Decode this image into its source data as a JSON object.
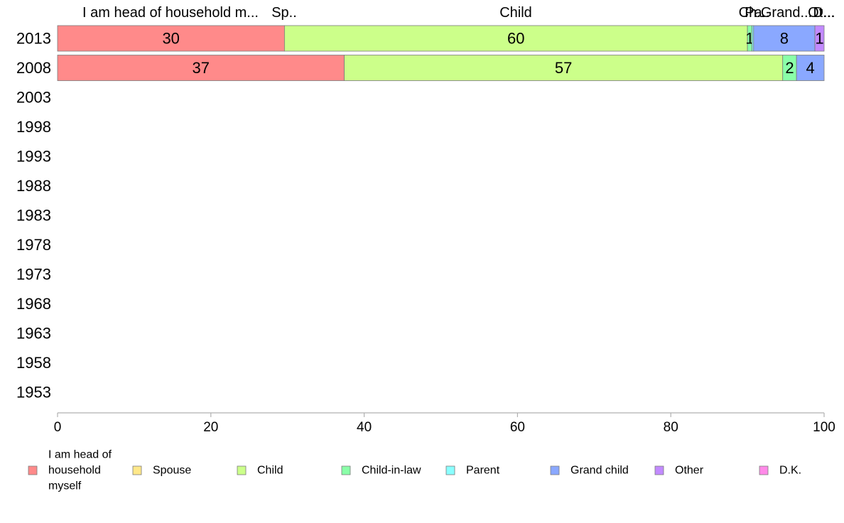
{
  "chart_data": {
    "type": "bar",
    "orientation": "horizontal",
    "stacked": true,
    "xlim": [
      0,
      100
    ],
    "x_ticks": [
      "0",
      "20",
      "40",
      "60",
      "80",
      "100"
    ],
    "categories": [
      "2013",
      "2008",
      "2003",
      "1998",
      "1993",
      "1988",
      "1983",
      "1978",
      "1973",
      "1968",
      "1963",
      "1958",
      "1953"
    ],
    "top_labels": [
      "I am head of household m...",
      "Sp..",
      "Child",
      "Ch..",
      "Pa..",
      "Grand...",
      "Ot...",
      "D..."
    ],
    "series": [
      {
        "name": "I am head of household myself",
        "color": "#ff8a8a",
        "values": [
          29.6,
          37.4,
          null,
          null,
          null,
          null,
          null,
          null,
          null,
          null,
          null,
          null,
          null
        ],
        "labels": [
          "30",
          "37",
          "",
          "",
          "",
          "",
          "",
          "",
          "",
          "",
          "",
          "",
          ""
        ]
      },
      {
        "name": "Spouse",
        "color": "#ffe88a",
        "values": [
          0,
          0,
          null,
          null,
          null,
          null,
          null,
          null,
          null,
          null,
          null,
          null,
          null
        ],
        "labels": [
          "",
          "",
          "",
          "",
          "",
          "",
          "",
          "",
          "",
          "",
          "",
          "",
          ""
        ]
      },
      {
        "name": "Child",
        "color": "#ccff8a",
        "values": [
          60.4,
          57.2,
          null,
          null,
          null,
          null,
          null,
          null,
          null,
          null,
          null,
          null,
          null
        ],
        "labels": [
          "60",
          "57",
          "",
          "",
          "",
          "",
          "",
          "",
          "",
          "",
          "",
          "",
          ""
        ]
      },
      {
        "name": "Child-in-law",
        "color": "#8affa8",
        "values": [
          0.6,
          1.8,
          null,
          null,
          null,
          null,
          null,
          null,
          null,
          null,
          null,
          null,
          null
        ],
        "labels": [
          "1",
          "2",
          "",
          "",
          "",
          "",
          "",
          "",
          "",
          "",
          "",
          "",
          ""
        ]
      },
      {
        "name": "Parent",
        "color": "#8affff",
        "values": [
          0.2,
          0,
          null,
          null,
          null,
          null,
          null,
          null,
          null,
          null,
          null,
          null,
          null
        ],
        "labels": [
          "",
          "",
          "",
          "",
          "",
          "",
          "",
          "",
          "",
          "",
          "",
          "",
          ""
        ]
      },
      {
        "name": "Grand child",
        "color": "#8aa8ff",
        "values": [
          8.0,
          3.6,
          null,
          null,
          null,
          null,
          null,
          null,
          null,
          null,
          null,
          null,
          null
        ],
        "labels": [
          "8",
          "4",
          "",
          "",
          "",
          "",
          "",
          "",
          "",
          "",
          "",
          "",
          ""
        ]
      },
      {
        "name": "Other",
        "color": "#c28aff",
        "values": [
          1.2,
          0,
          null,
          null,
          null,
          null,
          null,
          null,
          null,
          null,
          null,
          null,
          null
        ],
        "labels": [
          "1",
          "",
          "",
          "",
          "",
          "",
          "",
          "",
          "",
          "",
          "",
          "",
          ""
        ]
      },
      {
        "name": "D.K.",
        "color": "#ff8ae8",
        "values": [
          0,
          0,
          null,
          null,
          null,
          null,
          null,
          null,
          null,
          null,
          null,
          null,
          null
        ],
        "labels": [
          "",
          "",
          "",
          "",
          "",
          "",
          "",
          "",
          "",
          "",
          "",
          "",
          ""
        ]
      }
    ],
    "legend": {
      "placement": "bottom",
      "entries": [
        {
          "lines": [
            "I am head of",
            "household",
            "myself"
          ],
          "color": "#ff8a8a"
        },
        {
          "lines": [
            "Spouse"
          ],
          "color": "#ffe88a"
        },
        {
          "lines": [
            "Child"
          ],
          "color": "#ccff8a"
        },
        {
          "lines": [
            "Child-in-law"
          ],
          "color": "#8affa8"
        },
        {
          "lines": [
            "Parent"
          ],
          "color": "#8affff"
        },
        {
          "lines": [
            "Grand child"
          ],
          "color": "#8aa8ff"
        },
        {
          "lines": [
            "Other"
          ],
          "color": "#c28aff"
        },
        {
          "lines": [
            "D.K."
          ],
          "color": "#ff8ae8"
        }
      ]
    }
  }
}
